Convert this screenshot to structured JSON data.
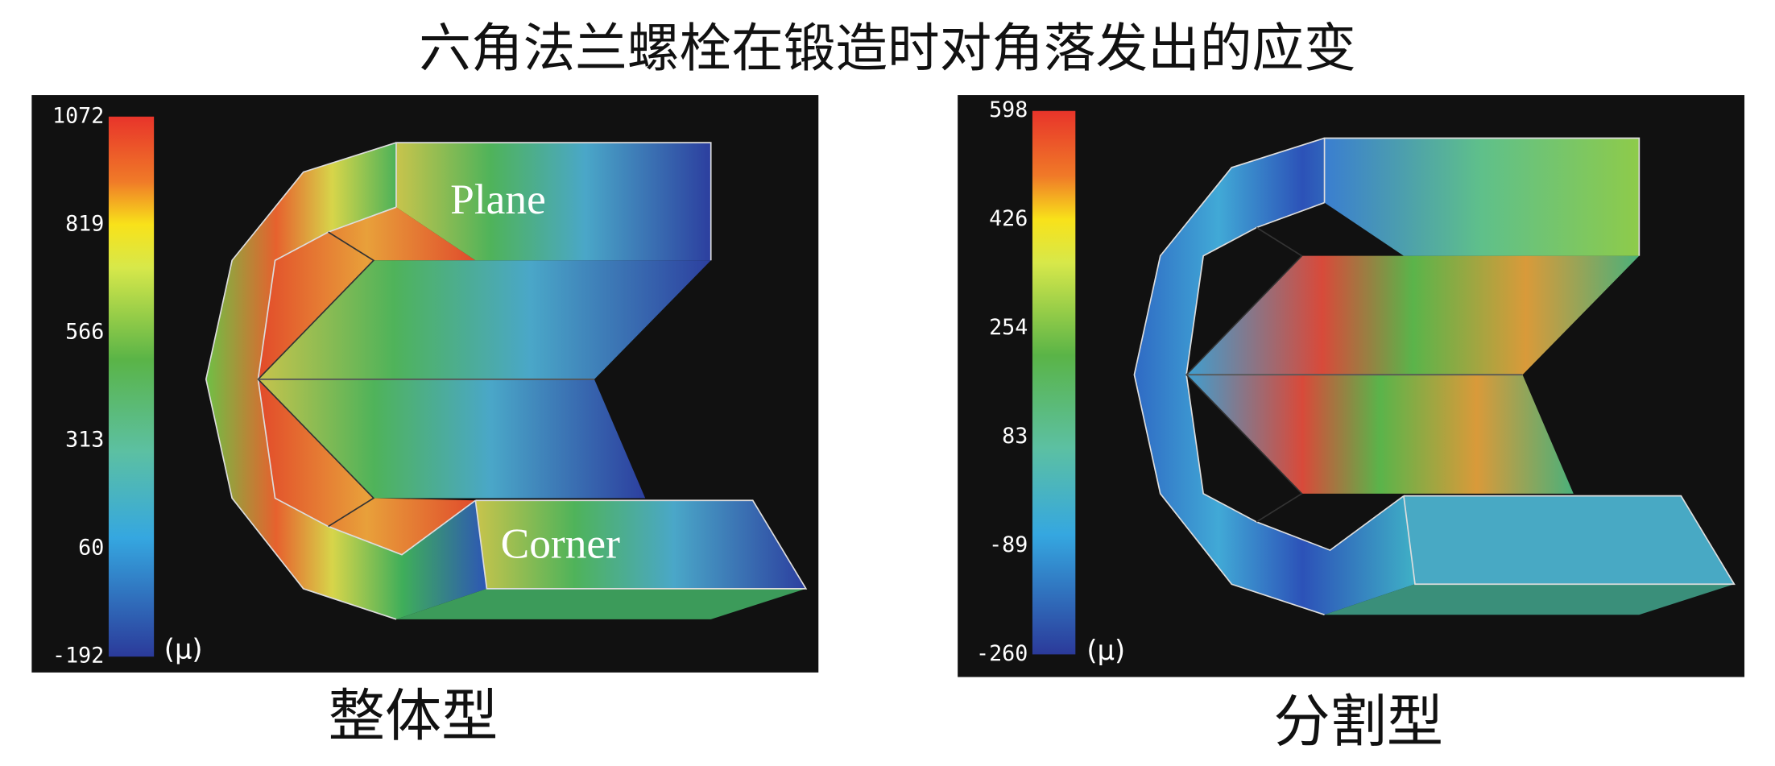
{
  "title": "六角法兰螺栓在锻造时对角落发出的应变",
  "panels": [
    {
      "caption": "整体型",
      "colorbar": {
        "ticks": [
          1072,
          819,
          566,
          313,
          60,
          -192
        ],
        "unit": "(μ)"
      },
      "labels": [
        "Plane",
        "Corner"
      ]
    },
    {
      "caption": "分割型",
      "colorbar": {
        "ticks": [
          598,
          426,
          254,
          83,
          -89,
          -260
        ],
        "unit": "(μ)"
      }
    }
  ]
}
